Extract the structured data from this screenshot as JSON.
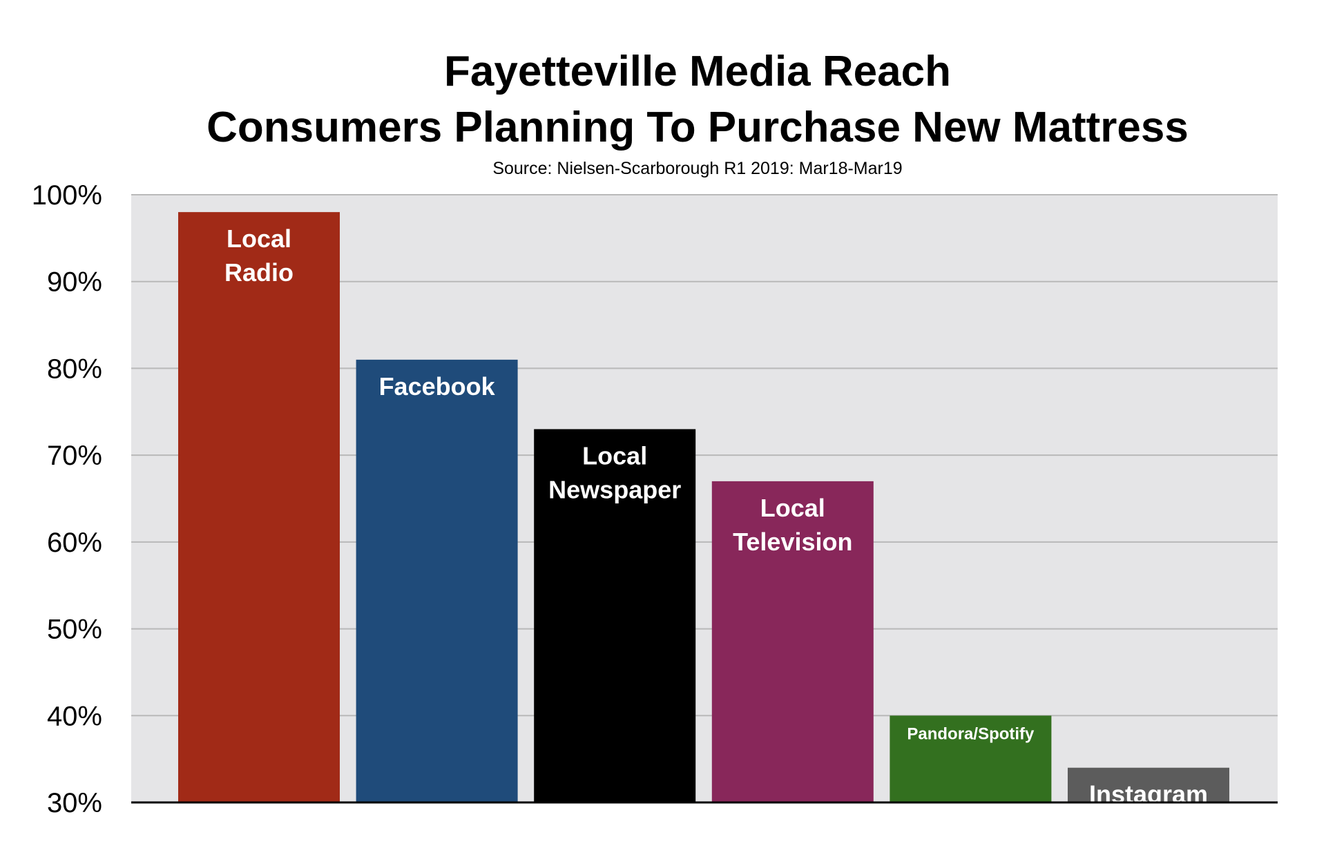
{
  "chart_data": {
    "type": "bar",
    "title_lines": [
      "Fayetteville Media Reach",
      "Consumers Planning To Purchase New Mattress"
    ],
    "subtitle": "Source: Nielsen-Scarborough R1 2019: Mar18-Mar19",
    "xlabel": "",
    "ylabel": "",
    "ylim": [
      30,
      100
    ],
    "y_ticks": [
      30,
      40,
      50,
      60,
      70,
      80,
      90,
      100
    ],
    "y_tick_suffix": "%",
    "grid": true,
    "legend": "none",
    "categories": [
      "Local Radio",
      "Facebook",
      "Local Newspaper",
      "Local Television",
      "Pandora/Spotify",
      "Instagram"
    ],
    "bar_labels": [
      [
        "Local",
        "Radio"
      ],
      [
        "Facebook"
      ],
      [
        "Local",
        "Newspaper"
      ],
      [
        "Local",
        "Television"
      ],
      [
        "Pandora/Spotify"
      ],
      [
        "Instagram"
      ]
    ],
    "values": [
      98,
      81,
      73,
      67,
      40,
      34
    ],
    "colors": [
      "#a12a17",
      "#1f4b7a",
      "#000000",
      "#88275a",
      "#33701f",
      "#5c5c5c"
    ],
    "plot_background": "#e5e5e7",
    "grid_color": "#b9b9b9"
  }
}
